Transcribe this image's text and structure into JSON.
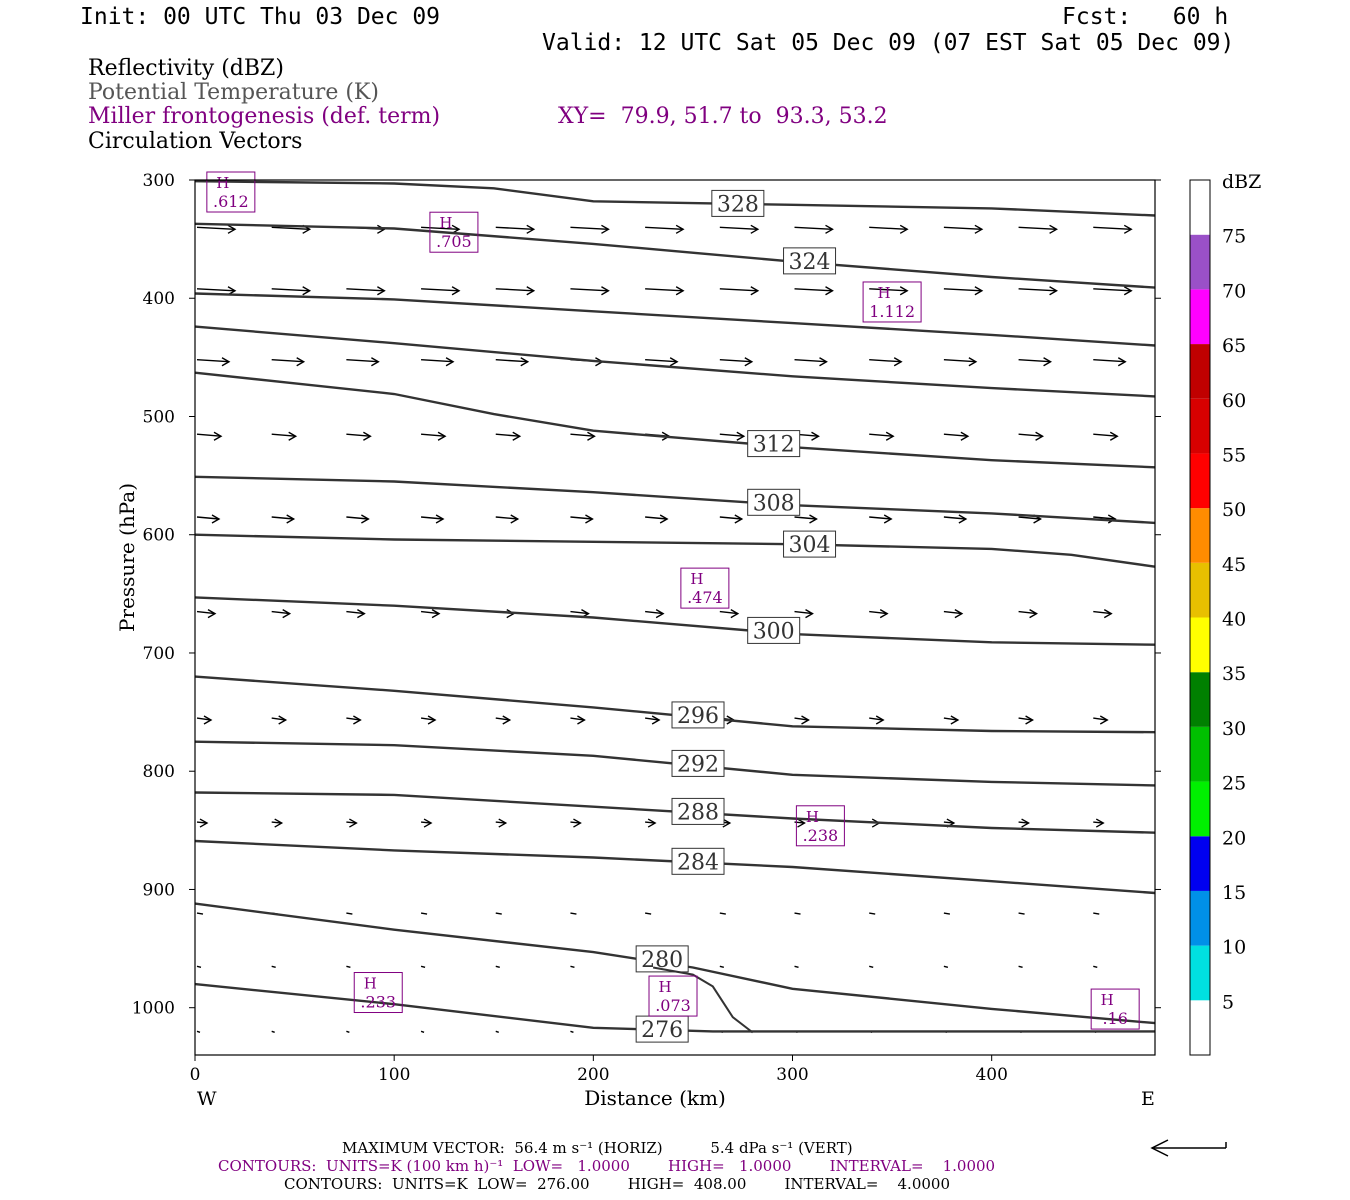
{
  "header": {
    "init": "Init: 00 UTC Thu 03 Dec 09",
    "fcst": "Fcst:   60 h",
    "valid": "Valid: 12 UTC Sat 05 Dec 09 (07 EST Sat 05 Dec 09)"
  },
  "fields": {
    "reflectivity": "Reflectivity (dBZ)",
    "theta": "Potential Temperature (K)",
    "frontogenesis": "Miller frontogenesis (def. term)",
    "xy": "XY=  79.9, 51.7 to  93.3, 53.2",
    "vectors": "Circulation Vectors"
  },
  "colors": {
    "purple": "#800080",
    "theta_line": "#333333",
    "frame": "#000000"
  },
  "chart_data": {
    "type": "cross-section",
    "xlabel": "Distance (km)",
    "ylabel": "Pressure (hPa)",
    "xlim": [
      0,
      482
    ],
    "ylim": [
      300,
      1040
    ],
    "x_ticks": [
      0,
      100,
      200,
      300,
      400
    ],
    "y_ticks": [
      300,
      400,
      500,
      600,
      700,
      800,
      900,
      1000
    ],
    "x_end_labels": {
      "left": "W",
      "right": "E"
    },
    "theta_contours": [
      {
        "label": "328",
        "label_x": 260,
        "points": [
          [
            0,
            301
          ],
          [
            100,
            303
          ],
          [
            150,
            307
          ],
          [
            200,
            318
          ],
          [
            300,
            321
          ],
          [
            400,
            324
          ],
          [
            482,
            330
          ]
        ]
      },
      {
        "label": "324",
        "label_x": 296,
        "points": [
          [
            0,
            337
          ],
          [
            100,
            341
          ],
          [
            200,
            354
          ],
          [
            300,
            369
          ],
          [
            400,
            382
          ],
          [
            482,
            391
          ]
        ]
      },
      {
        "label": "",
        "label_x": null,
        "points": [
          [
            0,
            396
          ],
          [
            100,
            401
          ],
          [
            200,
            411
          ],
          [
            300,
            421
          ],
          [
            400,
            431
          ],
          [
            482,
            440
          ]
        ]
      },
      {
        "label": "",
        "label_x": null,
        "points": [
          [
            0,
            424
          ],
          [
            100,
            438
          ],
          [
            200,
            453
          ],
          [
            300,
            466
          ],
          [
            400,
            476
          ],
          [
            482,
            483
          ]
        ]
      },
      {
        "label": "312",
        "label_x": 278,
        "points": [
          [
            0,
            463
          ],
          [
            100,
            481
          ],
          [
            150,
            498
          ],
          [
            200,
            512
          ],
          [
            300,
            526
          ],
          [
            400,
            537
          ],
          [
            482,
            543
          ]
        ]
      },
      {
        "label": "308",
        "label_x": 278,
        "points": [
          [
            0,
            551
          ],
          [
            100,
            555
          ],
          [
            200,
            564
          ],
          [
            300,
            575
          ],
          [
            400,
            582
          ],
          [
            482,
            590
          ]
        ]
      },
      {
        "label": "304",
        "label_x": 296,
        "points": [
          [
            0,
            600
          ],
          [
            100,
            604
          ],
          [
            200,
            606
          ],
          [
            300,
            608
          ],
          [
            400,
            612
          ],
          [
            440,
            617
          ],
          [
            482,
            627
          ]
        ]
      },
      {
        "label": "300",
        "label_x": 278,
        "points": [
          [
            0,
            653
          ],
          [
            100,
            660
          ],
          [
            200,
            670
          ],
          [
            300,
            684
          ],
          [
            400,
            691
          ],
          [
            482,
            693
          ]
        ]
      },
      {
        "label": "296",
        "label_x": 240,
        "points": [
          [
            0,
            720
          ],
          [
            100,
            732
          ],
          [
            200,
            746
          ],
          [
            300,
            762
          ],
          [
            400,
            766
          ],
          [
            482,
            767
          ]
        ]
      },
      {
        "label": "292",
        "label_x": 240,
        "points": [
          [
            0,
            775
          ],
          [
            100,
            778
          ],
          [
            200,
            787
          ],
          [
            300,
            803
          ],
          [
            400,
            809
          ],
          [
            482,
            812
          ]
        ]
      },
      {
        "label": "288",
        "label_x": 240,
        "points": [
          [
            0,
            818
          ],
          [
            100,
            820
          ],
          [
            200,
            830
          ],
          [
            300,
            840
          ],
          [
            400,
            848
          ],
          [
            482,
            852
          ]
        ]
      },
      {
        "label": "284",
        "label_x": 240,
        "points": [
          [
            0,
            859
          ],
          [
            100,
            867
          ],
          [
            200,
            873
          ],
          [
            300,
            881
          ],
          [
            400,
            893
          ],
          [
            482,
            903
          ]
        ]
      },
      {
        "label": "280",
        "label_x": 222,
        "points": [
          [
            0,
            912
          ],
          [
            100,
            934
          ],
          [
            200,
            953
          ],
          [
            250,
            966
          ],
          [
            300,
            984
          ],
          [
            400,
            1001
          ],
          [
            482,
            1013
          ]
        ]
      },
      {
        "label": "276",
        "label_x": 222,
        "points": [
          [
            0,
            980
          ],
          [
            100,
            997
          ],
          [
            200,
            1017
          ],
          [
            260,
            1020
          ],
          [
            300,
            1020
          ],
          [
            400,
            1020
          ],
          [
            482,
            1020
          ]
        ]
      }
    ],
    "extra_line": {
      "points": [
        [
          230,
          966
        ],
        [
          250,
          972
        ],
        [
          260,
          982
        ],
        [
          270,
          1008
        ],
        [
          280,
          1021
        ]
      ]
    },
    "frontogenesis_maxima": [
      {
        "h": "H",
        "value": ".612",
        "x": 18,
        "p": 311
      },
      {
        "h": "H",
        "value": ".705",
        "x": 130,
        "p": 345
      },
      {
        "h": "H",
        "value": "1.112",
        "x": 350,
        "p": 404
      },
      {
        "h": "H",
        "value": ".474",
        "x": 256,
        "p": 646
      },
      {
        "h": "H",
        "value": ".238",
        "x": 314,
        "p": 847
      },
      {
        "h": "H",
        "value": ".233",
        "x": 92,
        "p": 988
      },
      {
        "h": "H",
        "value": ".073",
        "x": 240,
        "p": 991
      },
      {
        "h": "H",
        "value": ".16",
        "x": 462,
        "p": 1002
      }
    ],
    "vector_rows": [
      {
        "p": 340,
        "len": 38
      },
      {
        "p": 392,
        "len": 38
      },
      {
        "p": 452,
        "len": 32
      },
      {
        "p": 515,
        "len": 24
      },
      {
        "p": 585,
        "len": 22
      },
      {
        "p": 665,
        "len": 18
      },
      {
        "p": 755,
        "len": 14
      },
      {
        "p": 843,
        "len": 10
      },
      {
        "p": 920,
        "len": 6
      },
      {
        "p": 965,
        "len": 4
      },
      {
        "p": 1020,
        "len": 3
      }
    ]
  },
  "colorbar": {
    "unit": "dBZ",
    "levels": [
      "5",
      "10",
      "15",
      "20",
      "25",
      "30",
      "35",
      "40",
      "45",
      "50",
      "55",
      "60",
      "65",
      "70",
      "75"
    ],
    "colors": [
      "#ffffff",
      "#00e0e0",
      "#0090e8",
      "#0000f0",
      "#00f000",
      "#00c000",
      "#008000",
      "#ffff00",
      "#e8c000",
      "#ff8c00",
      "#ff0000",
      "#d80000",
      "#c00000",
      "#ff00ff",
      "#9a50c8",
      "#ffffff"
    ]
  },
  "footer": {
    "max_vector": "MAXIMUM VECTOR:  56.4 m s⁻¹ (HORIZ)          5.4 dPa s⁻¹ (VERT)",
    "contours1": "CONTOURS:  UNITS=K (100 km h)⁻¹  LOW=   1.0000        HIGH=   1.0000        INTERVAL=    1.0000",
    "contours2": "CONTOURS:  UNITS=K  LOW=  276.00        HIGH=  408.00        INTERVAL=    4.0000"
  }
}
